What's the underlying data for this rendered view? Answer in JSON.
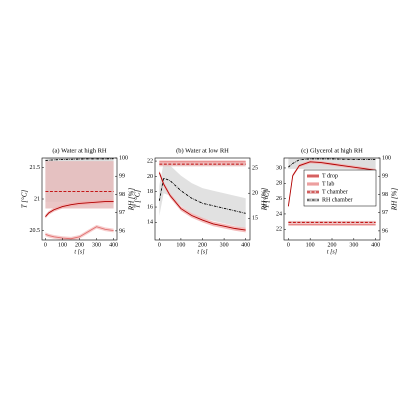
{
  "chart_data": [
    {
      "type": "line",
      "title": "(a) Water at high RH",
      "xlabel": "t [s]",
      "ylabel": "T [°C]",
      "y2label": "RH [%]",
      "y_color": "#c00000",
      "x": [
        0,
        20,
        50,
        100,
        150,
        200,
        250,
        300,
        350,
        400
      ],
      "xlim": [
        -20,
        420
      ],
      "xticks": [
        0,
        100,
        200,
        300,
        400
      ],
      "ylim": [
        20.35,
        21.65
      ],
      "yticks": [
        20.5,
        21,
        21.5
      ],
      "y2lim": [
        95.5,
        100
      ],
      "y2ticks": [
        96,
        97,
        98,
        99,
        100
      ],
      "series": [
        {
          "color": "#d8d8d8",
          "dash": "dashdot",
          "line_color": "#000000",
          "axis": "y2",
          "values": [
            99.85,
            99.88,
            99.9,
            99.92,
            99.93,
            99.94,
            99.95,
            99.95,
            99.95,
            99.96
          ],
          "lower": [
            97.6,
            97.6,
            97.6,
            97.6,
            97.6,
            97.6,
            97.6,
            97.6,
            97.6,
            97.6
          ],
          "upper": [
            100,
            100,
            100,
            100,
            100,
            100,
            100,
            100,
            100,
            100
          ]
        },
        {
          "color": "#e6bcbc",
          "dash": "dashed",
          "line_color": "#c00000",
          "values": [
            21.12,
            21.12,
            21.12,
            21.12,
            21.12,
            21.12,
            21.12,
            21.12,
            21.12,
            21.12
          ],
          "lower": [
            20.85,
            20.85,
            20.85,
            20.85,
            20.85,
            20.85,
            20.85,
            20.85,
            20.85,
            20.85
          ],
          "upper": [
            21.6,
            21.6,
            21.6,
            21.6,
            21.6,
            21.6,
            21.6,
            21.6,
            21.6,
            21.6
          ]
        },
        {
          "color": "#f6c6c6",
          "dash": "solid",
          "line_color": "#e07070",
          "values": [
            20.44,
            20.42,
            20.4,
            20.38,
            20.37,
            20.4,
            20.48,
            20.56,
            20.52,
            20.5
          ],
          "lower": [
            20.41,
            20.39,
            20.37,
            20.35,
            20.34,
            20.37,
            20.45,
            20.53,
            20.49,
            20.47
          ],
          "upper": [
            20.47,
            20.45,
            20.43,
            20.41,
            20.4,
            20.43,
            20.51,
            20.59,
            20.55,
            20.53
          ]
        },
        {
          "color": "#f2b0b0",
          "dash": "solid",
          "line_color": "#b00000",
          "values": [
            20.72,
            20.78,
            20.83,
            20.88,
            20.91,
            20.93,
            20.94,
            20.95,
            20.96,
            20.96
          ],
          "lower": [
            20.69,
            20.75,
            20.8,
            20.85,
            20.88,
            20.9,
            20.91,
            20.92,
            20.93,
            20.93
          ],
          "upper": [
            20.75,
            20.81,
            20.86,
            20.91,
            20.94,
            20.96,
            20.97,
            20.98,
            20.99,
            20.99
          ]
        }
      ]
    },
    {
      "type": "line",
      "title": "(b) Water at low RH",
      "xlabel": "t [s]",
      "ylabel": "T [°C]",
      "y2label": "RH [%]",
      "y_color": "#c00000",
      "x": [
        0,
        20,
        50,
        100,
        150,
        200,
        250,
        300,
        350,
        400
      ],
      "xlim": [
        -20,
        420
      ],
      "xticks": [
        0,
        100,
        200,
        300,
        400
      ],
      "ylim": [
        11.7,
        22.4
      ],
      "yticks": [
        14,
        16,
        18,
        20,
        22
      ],
      "y2lim": [
        10.7,
        27
      ],
      "y2ticks": [
        15,
        20,
        25
      ],
      "series": [
        {
          "color": "#dcdcdc",
          "dash": "dashdot",
          "line_color": "#000000",
          "axis": "y2",
          "values": [
            18.5,
            23,
            22.5,
            20.5,
            19,
            18,
            17.5,
            17,
            16.5,
            16
          ],
          "lower": [
            15.5,
            20,
            19.5,
            17.5,
            16,
            15,
            14.5,
            14,
            13.5,
            13
          ],
          "upper": [
            21.5,
            26,
            25.5,
            23.5,
            22,
            21,
            20.5,
            20,
            19.5,
            19
          ]
        },
        {
          "color": "#e6bcbc",
          "dash": "dashed",
          "line_color": "#c00000",
          "values": [
            21.6,
            21.6,
            21.6,
            21.6,
            21.6,
            21.6,
            21.6,
            21.6,
            21.6,
            21.6
          ],
          "lower": [
            21.3,
            21.3,
            21.3,
            21.3,
            21.3,
            21.3,
            21.3,
            21.3,
            21.3,
            21.3
          ],
          "upper": [
            21.9,
            21.9,
            21.9,
            21.9,
            21.9,
            21.9,
            21.9,
            21.9,
            21.9,
            21.9
          ]
        },
        {
          "color": "#f6c6c6",
          "dash": "solid",
          "line_color": "#e07070",
          "values": [
            21.9,
            21.9,
            21.9,
            21.9,
            21.9,
            21.9,
            21.9,
            21.9,
            21.9,
            21.9
          ],
          "lower": [
            21.7,
            21.7,
            21.7,
            21.7,
            21.7,
            21.7,
            21.7,
            21.7,
            21.7,
            21.7
          ],
          "upper": [
            22.1,
            22.1,
            22.1,
            22.1,
            22.1,
            22.1,
            22.1,
            22.1,
            22.1,
            22.1
          ]
        },
        {
          "color": "#f2b0b0",
          "dash": "solid",
          "line_color": "#b00000",
          "values": [
            20.5,
            19,
            17.5,
            15.8,
            14.9,
            14.3,
            13.8,
            13.5,
            13.2,
            13
          ],
          "lower": [
            20.2,
            18.7,
            17.2,
            15.5,
            14.6,
            14,
            13.5,
            13.2,
            12.9,
            12.7
          ],
          "upper": [
            20.8,
            19.3,
            17.8,
            16.1,
            15.2,
            14.6,
            14.1,
            13.8,
            13.5,
            13.3
          ]
        }
      ]
    },
    {
      "type": "line",
      "title": "(c) Glycerol at high RH",
      "xlabel": "t [s]",
      "ylabel": "T [°C]",
      "y2label": "RH [%]",
      "y_color": "#c00000",
      "legend": "center",
      "x": [
        0,
        20,
        50,
        100,
        150,
        200,
        250,
        300,
        350,
        400
      ],
      "xlim": [
        -20,
        420
      ],
      "xticks": [
        0,
        100,
        200,
        300,
        400
      ],
      "ylim": [
        20.6,
        31.3
      ],
      "yticks": [
        22,
        24,
        26,
        28,
        30
      ],
      "y2lim": [
        95.5,
        100
      ],
      "y2ticks": [
        96,
        97,
        98,
        99,
        100
      ],
      "series": [
        {
          "name": "RH chamber",
          "color": "#d8d8d8",
          "dash": "dashdot",
          "line_color": "#000000",
          "axis": "y2",
          "values": [
            99.5,
            99.7,
            99.9,
            99.95,
            99.95,
            99.95,
            99.93,
            99.92,
            99.92,
            99.92
          ],
          "lower": [
            99.4,
            99.4,
            99.4,
            99.4,
            99.4,
            99.4,
            99.4,
            99.4,
            99.4,
            99.4
          ],
          "upper": [
            100,
            100,
            100,
            100,
            100,
            100,
            100,
            100,
            100,
            100
          ]
        },
        {
          "name": "T chamber",
          "color": "#e6bcbc",
          "dash": "dashed",
          "line_color": "#c00000",
          "values": [
            22.9,
            22.9,
            22.9,
            22.9,
            22.9,
            22.9,
            22.9,
            22.9,
            22.9,
            22.9
          ],
          "lower": [
            22.7,
            22.7,
            22.7,
            22.7,
            22.7,
            22.7,
            22.7,
            22.7,
            22.7,
            22.7
          ],
          "upper": [
            23.1,
            23.1,
            23.1,
            23.1,
            23.1,
            23.1,
            23.1,
            23.1,
            23.1,
            23.1
          ]
        },
        {
          "name": "T lab",
          "color": "#f6c6c6",
          "dash": "solid",
          "line_color": "#e07070",
          "values": [
            22.6,
            22.6,
            22.6,
            22.6,
            22.6,
            22.6,
            22.6,
            22.6,
            22.6,
            22.6
          ],
          "lower": [
            22.45,
            22.45,
            22.45,
            22.45,
            22.45,
            22.45,
            22.45,
            22.45,
            22.45,
            22.45
          ],
          "upper": [
            22.75,
            22.75,
            22.75,
            22.75,
            22.75,
            22.75,
            22.75,
            22.75,
            22.75,
            22.75
          ]
        },
        {
          "name": "T drop",
          "color": "#f2b0b0",
          "dash": "solid",
          "line_color": "#b00000",
          "values": [
            25,
            29,
            30.3,
            30.8,
            30.7,
            30.5,
            30.3,
            30.1,
            29.9,
            29.7
          ],
          "lower": [
            24.8,
            28.8,
            30.1,
            30.6,
            30.5,
            30.3,
            30.1,
            29.9,
            29.7,
            29.5
          ],
          "upper": [
            25.2,
            29.2,
            30.5,
            31,
            30.9,
            30.7,
            30.5,
            30.3,
            30.1,
            29.9
          ]
        }
      ]
    }
  ]
}
